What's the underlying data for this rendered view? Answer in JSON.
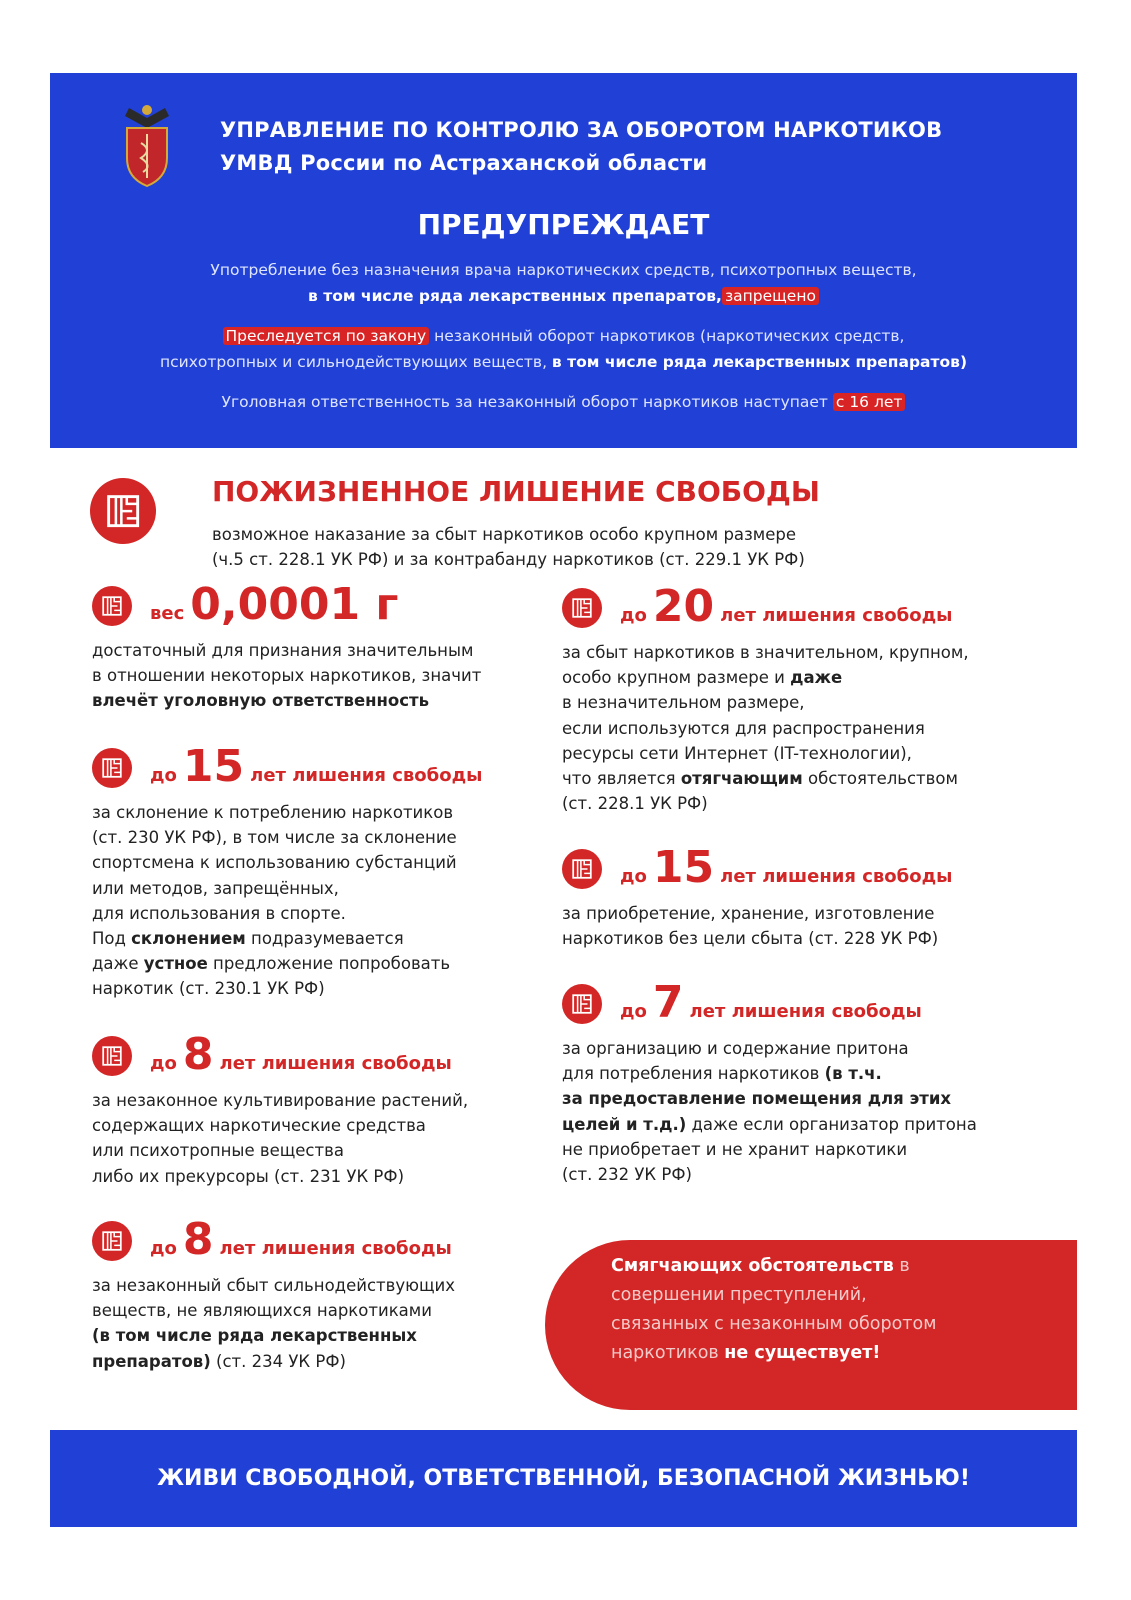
{
  "header": {
    "title_line1": "УПРАВЛЕНИЕ ПО КОНТРОЛЮ ЗА ОБОРОТОМ НАРКОТИКОВ",
    "title_line2": "УМВД России по Астраханской области",
    "warns": "ПРЕДУПРЕЖДАЕТ",
    "p1_a": "Употребление без назначения врача наркотических средств, психотропных веществ,",
    "p1_b": "в том числе ряда лекарственных препаратов,",
    "p1_hl": "запрещено",
    "p2_hl": "Преследуется по закону",
    "p2_a": " незаконный оборот наркотиков (наркотических средств,",
    "p2_b": "психотропных и сильнодействующих веществ, ",
    "p2_c": "в том числе ряда лекарственных препаратов)",
    "p3_a": "Уголовная ответственность за незаконный оборот наркотиков наступает ",
    "p3_hl": "с 16 лет",
    "emblem_icon": "mvd-emblem-icon"
  },
  "life": {
    "title": "ПОЖИЗНЕННОЕ ЛИШЕНИЕ СВОБОДЫ",
    "line1": "возможное наказание за сбыт наркотиков особо крупном размере",
    "line2": "(ч.5 ст. 228.1 УК РФ) и за контрабанду наркотиков (ст. 229.1 УК РФ)"
  },
  "blocks": [
    {
      "pre": "вес",
      "num": "0,0001 г",
      "suf": "",
      "lines": [
        [
          {
            "t": "достаточный для признания значительным"
          }
        ],
        [
          {
            "t": "в отношении некоторых наркотиков, значит"
          }
        ],
        [
          {
            "t": "влечёт уголовную ответственность",
            "b": true
          }
        ]
      ]
    },
    {
      "pre": "до",
      "num": "15",
      "suf": "лет лишения свободы",
      "lines": [
        [
          {
            "t": "за склонение к потреблению наркотиков"
          }
        ],
        [
          {
            "t": "(ст. 230 УК РФ), в том числе за склонение"
          }
        ],
        [
          {
            "t": "спортсмена к использованию субстанций"
          }
        ],
        [
          {
            "t": "или методов, запрещённых,"
          }
        ],
        [
          {
            "t": "для использования в спорте."
          }
        ],
        [
          {
            "t": "Под "
          },
          {
            "t": "склонением",
            "b": true
          },
          {
            "t": " подразумевается"
          }
        ],
        [
          {
            "t": "даже "
          },
          {
            "t": "устное",
            "b": true
          },
          {
            "t": " предложение попробовать"
          }
        ],
        [
          {
            "t": "наркотик (ст. 230.1 УК РФ)"
          }
        ]
      ]
    },
    {
      "pre": "до",
      "num": "8",
      "suf": "лет лишения свободы",
      "lines": [
        [
          {
            "t": "за незаконное культивирование растений,"
          }
        ],
        [
          {
            "t": "содержащих наркотические средства"
          }
        ],
        [
          {
            "t": "или психотропные вещества"
          }
        ],
        [
          {
            "t": "либо их прекурсоры (ст. 231 УК РФ)"
          }
        ]
      ]
    },
    {
      "pre": "до",
      "num": "8",
      "suf": "лет лишения свободы",
      "lines": [
        [
          {
            "t": "за незаконный сбыт сильнодействующих"
          }
        ],
        [
          {
            "t": "веществ, не являющихся наркотиками"
          }
        ],
        [
          {
            "t": "(в том числе ряда лекарственных",
            "b": true
          }
        ],
        [
          {
            "t": "препаратов)",
            "b": true
          },
          {
            "t": " (ст. 234 УК РФ)"
          }
        ]
      ]
    },
    {
      "pre": "до",
      "num": "20",
      "suf": "лет лишения свободы",
      "lines": [
        [
          {
            "t": "за сбыт наркотиков в значительном, крупном,"
          }
        ],
        [
          {
            "t": "особо крупном размере и "
          },
          {
            "t": "даже",
            "b": true
          }
        ],
        [
          {
            "t": "в незначительном размере,"
          }
        ],
        [
          {
            "t": "если используются для распространения"
          }
        ],
        [
          {
            "t": "ресурсы сети Интернет (IT-технологии),"
          }
        ],
        [
          {
            "t": "что является "
          },
          {
            "t": "отягчающим",
            "b": true
          },
          {
            "t": " обстоятельством"
          }
        ],
        [
          {
            "t": "(ст. 228.1 УК РФ)"
          }
        ]
      ]
    },
    {
      "pre": "до",
      "num": "15",
      "suf": "лет лишения свободы",
      "lines": [
        [
          {
            "t": "за приобретение, хранение, изготовление"
          }
        ],
        [
          {
            "t": "наркотиков без цели сбыта (ст. 228 УК РФ)"
          }
        ]
      ]
    },
    {
      "pre": "до",
      "num": "7",
      "suf": "лет лишения свободы",
      "lines": [
        [
          {
            "t": "за организацию и содержание притона"
          }
        ],
        [
          {
            "t": "для потребления наркотиков "
          },
          {
            "t": "(в т.ч.",
            "b": true
          }
        ],
        [
          {
            "t": "за предоставление помещения для этих",
            "b": true
          }
        ],
        [
          {
            "t": "целей и т.д.)",
            "b": true
          },
          {
            "t": " даже если организатор притона"
          }
        ],
        [
          {
            "t": "не приобретает и не хранит наркотики"
          }
        ],
        [
          {
            "t": "(ст. 232 УК РФ)"
          }
        ]
      ]
    }
  ],
  "redbox": {
    "a": "Смягчающих обстоятельств",
    "b": " в",
    "c": "совершении преступлений,",
    "d": "связанных с незаконным оборотом",
    "e": "наркотиков ",
    "f": "не существует!"
  },
  "footer": "ЖИВИ СВОБОДНОЙ, ОТВЕТСТВЕННОЙ, БЕЗОПАСНОЙ ЖИЗНЬЮ!",
  "colors": {
    "blue": "#2141d6",
    "red": "#d32626"
  },
  "icons": {
    "bullet": "prison-bars-icon"
  }
}
